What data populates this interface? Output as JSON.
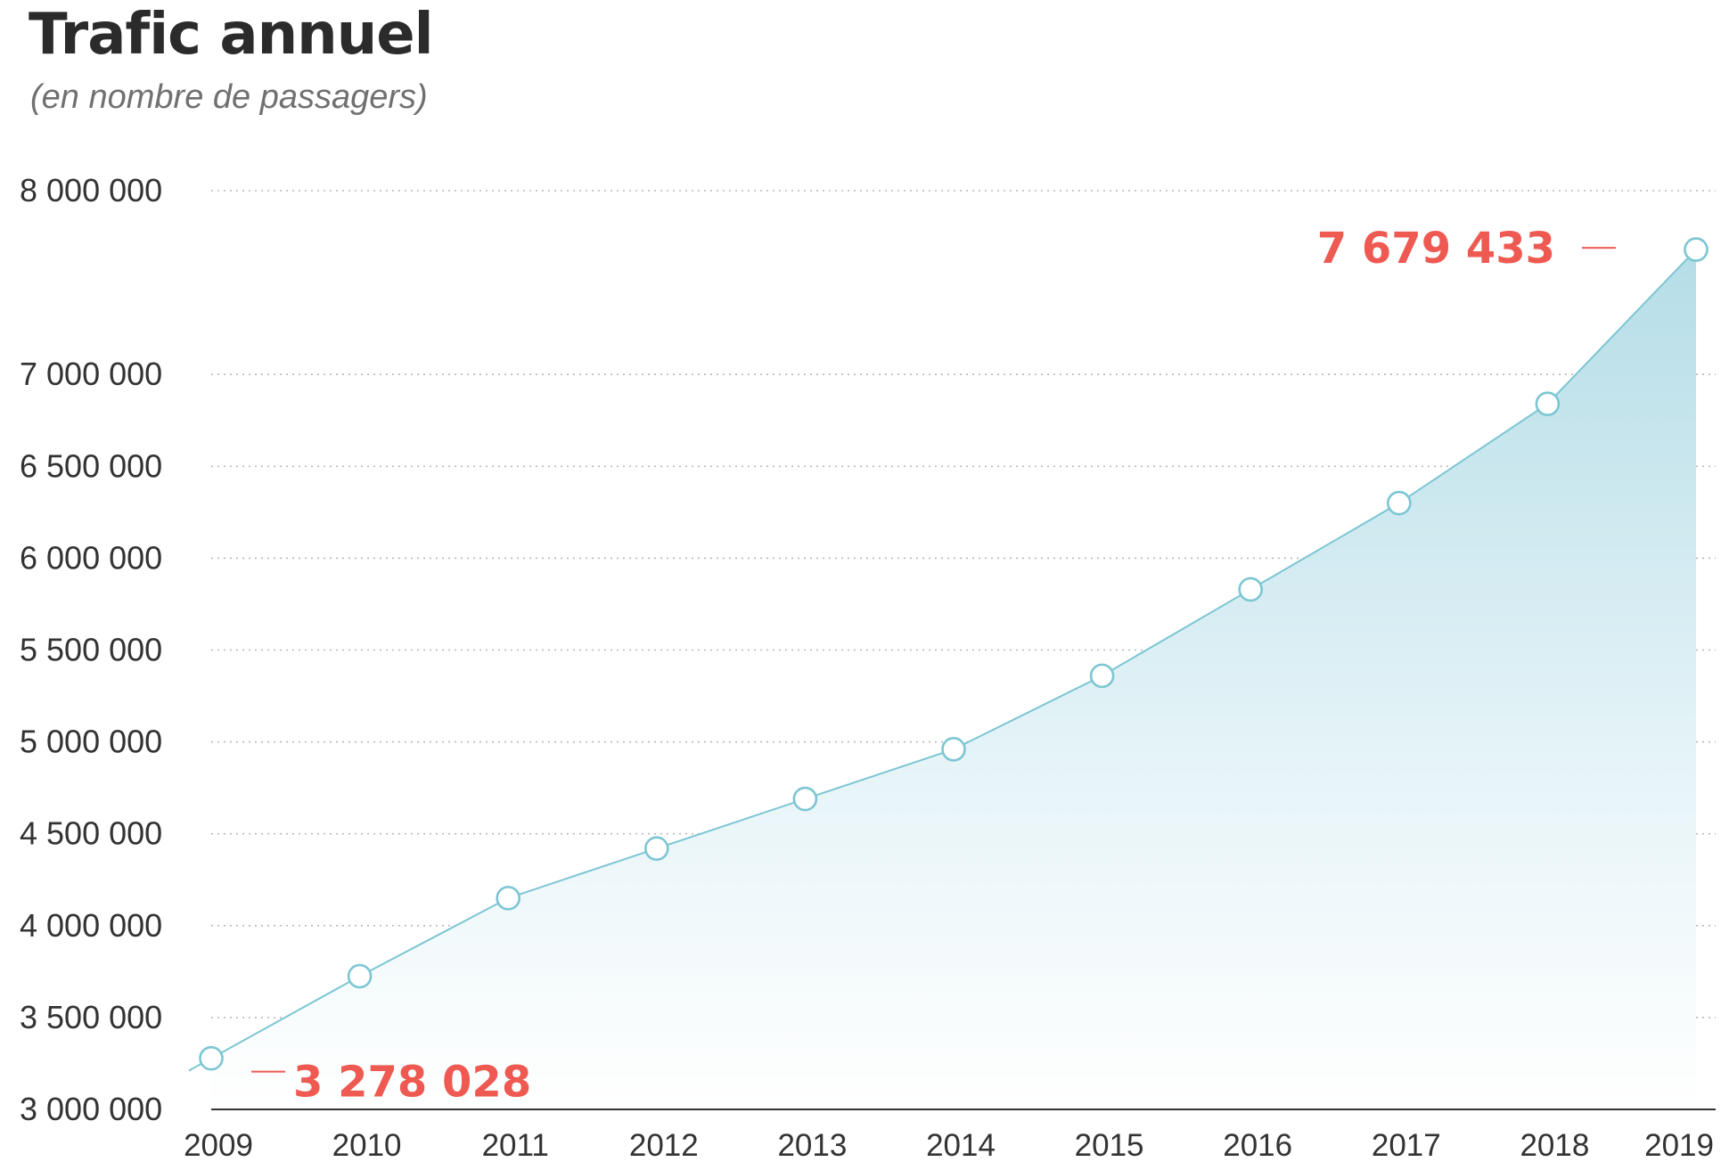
{
  "colors": {
    "line": "#7cc6d3",
    "fill_top": "#b5dde7",
    "fill_bottom": "#ffffff",
    "highlight": "#ee5a52",
    "grid": "#b8b8b8",
    "axis": "#333333"
  },
  "chart_data": {
    "type": "area",
    "title": "Trafic annuel",
    "subtitle": "(en nombre de passagers)",
    "xlabel": "",
    "ylabel": "",
    "x": [
      2009,
      2010,
      2011,
      2012,
      2013,
      2014,
      2015,
      2016,
      2017,
      2018,
      2019
    ],
    "x_tick_labels": [
      "2009",
      "2010",
      "2011",
      "2012",
      "2013",
      "2014",
      "2015",
      "2016",
      "2017",
      "2018",
      "2019"
    ],
    "y_tick_values": [
      3000000,
      3500000,
      4000000,
      4500000,
      5000000,
      5500000,
      6000000,
      6500000,
      7000000,
      8000000
    ],
    "y_tick_labels": [
      "3 000 000",
      "3 500 000",
      "4 000 000",
      "4 500 000",
      "5 000 000",
      "5 500 000",
      "6 000 000",
      "6 500 000",
      "7 000 000",
      "8 000 000"
    ],
    "ylim": [
      3000000,
      8000000
    ],
    "grid": true,
    "legend": false,
    "series": [
      {
        "values": [
          3278028,
          3725000,
          4150000,
          4420000,
          4690000,
          4960000,
          5360000,
          5830000,
          6300000,
          6840000,
          7679433
        ]
      }
    ],
    "annotations": [
      {
        "x": 2009,
        "value": 3278028,
        "text": "3 278 028"
      },
      {
        "x": 2019,
        "value": 7679433,
        "text": "7 679 433"
      }
    ]
  }
}
